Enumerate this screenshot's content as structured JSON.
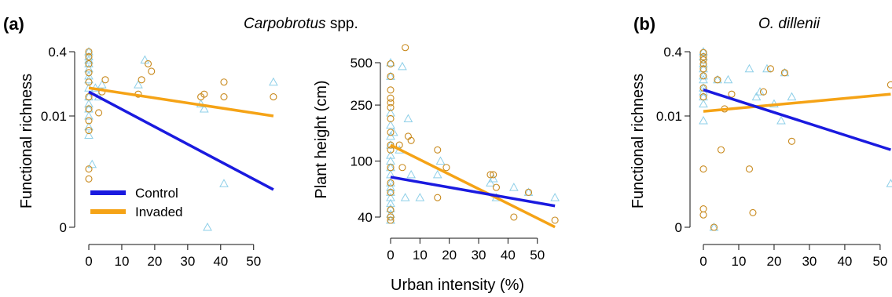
{
  "figure": {
    "panel_a_letter": "(a)",
    "panel_a_title_species": "Carpobrotus",
    "panel_a_title_suffix": " spp.",
    "panel_b_letter": "(b)",
    "panel_b_title": "O. dillenii",
    "shared_xlabel": "Urban intensity (%)"
  },
  "legend": [
    {
      "label": "Control",
      "color": "#1a1adf"
    },
    {
      "label": "Invaded",
      "color": "#f5a316"
    }
  ],
  "colors": {
    "control_points": "#8ecfe8",
    "invaded_points": "#c8891c",
    "axis": "#111111"
  },
  "chart_data": [
    {
      "id": "a1",
      "type": "scatter",
      "ylabel": "Functional richness",
      "x_ticks": [
        "0",
        "10",
        "20",
        "30",
        "40",
        "50"
      ],
      "y_ticks": [
        "0",
        "0.01",
        "0.4"
      ],
      "xlim": [
        0,
        57
      ],
      "y_scale": "log-like",
      "series": [
        {
          "name": "Control",
          "marker": "triangle",
          "points": [
            [
              0,
              0.4
            ],
            [
              0,
              0.3
            ],
            [
              0,
              0.25
            ],
            [
              0,
              0.2
            ],
            [
              0,
              0.15
            ],
            [
              0,
              0.1
            ],
            [
              0,
              0.08
            ],
            [
              0,
              0.05
            ],
            [
              0,
              0.03
            ],
            [
              0,
              0.02
            ],
            [
              0,
              0.015
            ],
            [
              0,
              0.01
            ],
            [
              0,
              0.006
            ],
            [
              0,
              0.004
            ],
            [
              1,
              0.001
            ],
            [
              2,
              0.05
            ],
            [
              3,
              0.03
            ],
            [
              4,
              0.06
            ],
            [
              15,
              0.06
            ],
            [
              17,
              0.25
            ],
            [
              34,
              0.02
            ],
            [
              35,
              0.015
            ],
            [
              36,
              0
            ],
            [
              41,
              0.0004
            ],
            [
              56,
              0.07
            ]
          ],
          "fit": [
            [
              0,
              0.04
            ],
            [
              56,
              0.0003
            ]
          ]
        },
        {
          "name": "Invaded",
          "marker": "circle",
          "points": [
            [
              0,
              0.4
            ],
            [
              0,
              0.3
            ],
            [
              0,
              0.2
            ],
            [
              0,
              0.12
            ],
            [
              0,
              0.07
            ],
            [
              0,
              0.03
            ],
            [
              0,
              0.015
            ],
            [
              0,
              0.008
            ],
            [
              0,
              0.005
            ],
            [
              0,
              0.0008
            ],
            [
              0,
              0.0005
            ],
            [
              3,
              0.012
            ],
            [
              4,
              0.04
            ],
            [
              5,
              0.08
            ],
            [
              15,
              0.035
            ],
            [
              16,
              0.08
            ],
            [
              18,
              0.2
            ],
            [
              19,
              0.13
            ],
            [
              34,
              0.03
            ],
            [
              35,
              0.035
            ],
            [
              41,
              0.07
            ],
            [
              41,
              0.03
            ],
            [
              56,
              0.03
            ]
          ],
          "fit": [
            [
              0,
              0.05
            ],
            [
              56,
              0.01
            ]
          ]
        }
      ]
    },
    {
      "id": "a2",
      "type": "scatter",
      "ylabel": "Plant height (cm)",
      "x_ticks": [
        "0",
        "10",
        "20",
        "30",
        "40",
        "50"
      ],
      "y_ticks": [
        "40",
        "100",
        "250",
        "500"
      ],
      "xlim": [
        0,
        57
      ],
      "y_scale": "log",
      "series": [
        {
          "name": "Control",
          "marker": "triangle",
          "points": [
            [
              0,
              500
            ],
            [
              0,
              400
            ],
            [
              0,
              220
            ],
            [
              0,
              180
            ],
            [
              0,
              150
            ],
            [
              0,
              130
            ],
            [
              0,
              110
            ],
            [
              0,
              100
            ],
            [
              0,
              90
            ],
            [
              0,
              80
            ],
            [
              0,
              70
            ],
            [
              0,
              65
            ],
            [
              0,
              60
            ],
            [
              0,
              55
            ],
            [
              0,
              50
            ],
            [
              0,
              46
            ],
            [
              0,
              42
            ],
            [
              0,
              38
            ],
            [
              1,
              160
            ],
            [
              3,
              120
            ],
            [
              4,
              470
            ],
            [
              5,
              55
            ],
            [
              6,
              200
            ],
            [
              7,
              80
            ],
            [
              10,
              55
            ],
            [
              16,
              80
            ],
            [
              17,
              100
            ],
            [
              34,
              70
            ],
            [
              35,
              75
            ],
            [
              36,
              55
            ],
            [
              42,
              65
            ],
            [
              47,
              60
            ],
            [
              56,
              55
            ]
          ],
          "fit": [
            [
              0,
              77
            ],
            [
              56,
              48
            ]
          ]
        },
        {
          "name": "Invaded",
          "marker": "circle",
          "points": [
            [
              0,
              490
            ],
            [
              0,
              400
            ],
            [
              0,
              320
            ],
            [
              0,
              280
            ],
            [
              0,
              260
            ],
            [
              0,
              240
            ],
            [
              0,
              200
            ],
            [
              0,
              160
            ],
            [
              0,
              130
            ],
            [
              0,
              120
            ],
            [
              0,
              90
            ],
            [
              0,
              70
            ],
            [
              0,
              60
            ],
            [
              0,
              45
            ],
            [
              0,
              40
            ],
            [
              0,
              38
            ],
            [
              3,
              130
            ],
            [
              4,
              90
            ],
            [
              5,
              640
            ],
            [
              6,
              150
            ],
            [
              7,
              140
            ],
            [
              16,
              55
            ],
            [
              16,
              120
            ],
            [
              19,
              90
            ],
            [
              34,
              80
            ],
            [
              35,
              80
            ],
            [
              36,
              65
            ],
            [
              42,
              40
            ],
            [
              47,
              60
            ],
            [
              56,
              38
            ]
          ],
          "fit": [
            [
              0,
              130
            ],
            [
              56,
              34
            ]
          ]
        }
      ]
    },
    {
      "id": "b1",
      "type": "scatter",
      "ylabel": "Functional richness",
      "x_ticks": [
        "0",
        "10",
        "20",
        "30",
        "40",
        "50"
      ],
      "y_ticks": [
        "0",
        "0.01",
        "0.4"
      ],
      "xlim": [
        0,
        52
      ],
      "y_scale": "log-like",
      "series": [
        {
          "name": "Control",
          "marker": "triangle",
          "points": [
            [
              0,
              0.4
            ],
            [
              0,
              0.3
            ],
            [
              0,
              0.2
            ],
            [
              0,
              0.15
            ],
            [
              0,
              0.1
            ],
            [
              0,
              0.08
            ],
            [
              0,
              0.05
            ],
            [
              0,
              0.04
            ],
            [
              0,
              0.03
            ],
            [
              0,
              0.02
            ],
            [
              0,
              0.008
            ],
            [
              3,
              0
            ],
            [
              4,
              0.08
            ],
            [
              7,
              0.08
            ],
            [
              13,
              0.15
            ],
            [
              15,
              0.03
            ],
            [
              16,
              0.04
            ],
            [
              18,
              0.15
            ],
            [
              20,
              0.02
            ],
            [
              22,
              0.008
            ],
            [
              23,
              0.12
            ],
            [
              25,
              0.03
            ],
            [
              53,
              0.0004
            ]
          ],
          "fit": [
            [
              0,
              0.045
            ],
            [
              53,
              0.002
            ]
          ]
        },
        {
          "name": "Invaded",
          "marker": "circle",
          "points": [
            [
              0,
              0.38
            ],
            [
              0,
              0.3
            ],
            [
              0,
              0.25
            ],
            [
              0,
              0.2
            ],
            [
              0,
              0.15
            ],
            [
              0,
              0.1
            ],
            [
              0,
              0.05
            ],
            [
              0,
              0.03
            ],
            [
              0,
              0.0008
            ],
            [
              0,
              0.00012
            ],
            [
              0,
              9e-05
            ],
            [
              3,
              0
            ],
            [
              4,
              0.08
            ],
            [
              5,
              0.002
            ],
            [
              6,
              0.015
            ],
            [
              8,
              0.035
            ],
            [
              13,
              0.0008
            ],
            [
              14,
              0.0001
            ],
            [
              17,
              0.04
            ],
            [
              19,
              0.15
            ],
            [
              23,
              0.12
            ],
            [
              25,
              0.003
            ],
            [
              53,
              0.06
            ]
          ],
          "fit": [
            [
              0,
              0.013
            ],
            [
              53,
              0.035
            ]
          ]
        }
      ]
    }
  ]
}
